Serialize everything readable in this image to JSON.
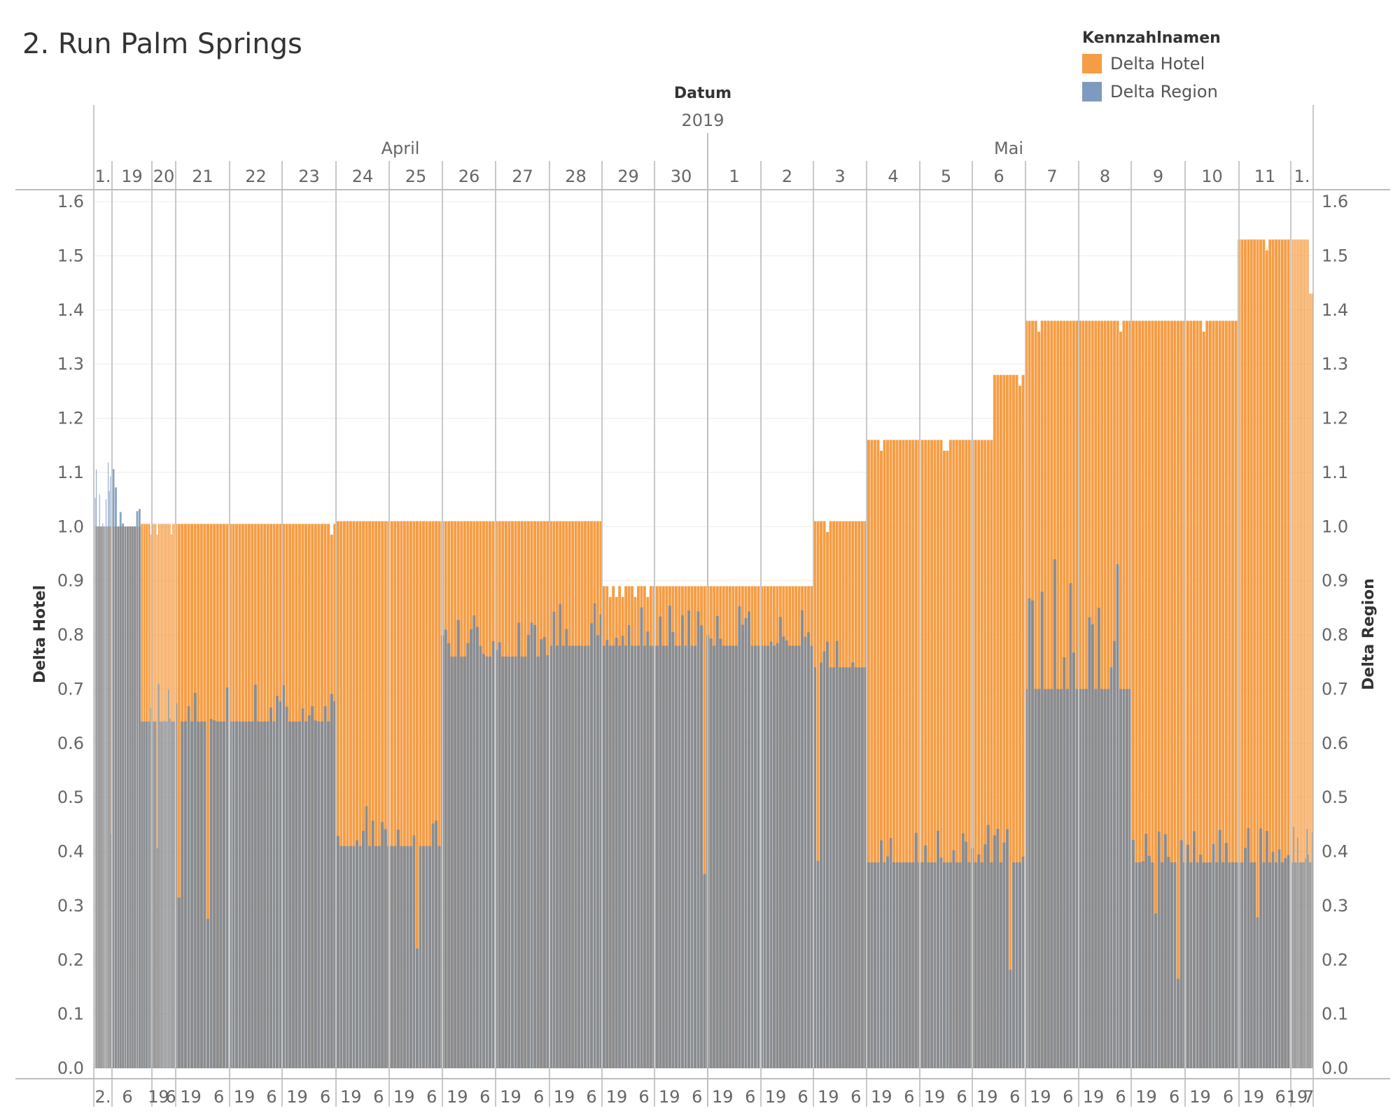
{
  "title": "2. Run Palm Springs",
  "legend": {
    "title": "Kennzahlnamen",
    "items": [
      {
        "label": "Delta Hotel",
        "color": "#f59d44"
      },
      {
        "label": "Delta Region",
        "color": "#7d9bc1"
      }
    ]
  },
  "chart_data": {
    "type": "bar",
    "title": "2. Run Palm Springs",
    "header": {
      "field": "Datum",
      "year": "2019",
      "months": [
        "April",
        "Mai"
      ]
    },
    "days": [
      "1.",
      "19",
      "20",
      "21",
      "22",
      "23",
      "24",
      "25",
      "26",
      "27",
      "28",
      "29",
      "30",
      "1",
      "2",
      "3",
      "4",
      "5",
      "6",
      "7",
      "8",
      "9",
      "10",
      "11",
      "1."
    ],
    "hour_labels": [
      "2.",
      "6",
      "19",
      "6",
      "19",
      "6",
      "19",
      "6",
      "19",
      "6",
      "19",
      "6",
      "19",
      "6",
      "19",
      "6",
      "19",
      "6",
      "19",
      "6",
      "19",
      "6",
      "19",
      "6",
      "19",
      "6",
      "19",
      "6",
      "19",
      "6",
      "19",
      "6",
      "19",
      "6",
      "19",
      "6",
      "19",
      "6",
      "19",
      "6",
      "19",
      "6",
      "19",
      "6",
      "19",
      "6",
      "19",
      "7"
    ],
    "ylabel_left": "Delta Hotel",
    "ylabel_right": "Delta Region",
    "ylim": [
      0,
      1.6
    ],
    "yticks": [
      "0.0",
      "0.1",
      "0.2",
      "0.3",
      "0.4",
      "0.5",
      "0.6",
      "0.7",
      "0.8",
      "0.9",
      "1.0",
      "1.1",
      "1.2",
      "1.3",
      "1.4",
      "1.5",
      "1.6"
    ],
    "series": [
      {
        "name": "Delta Hotel",
        "color": "#f59d44",
        "segments": [
          {
            "period": "Apr 18 (start)",
            "value": 1.0
          },
          {
            "period": "Apr 19 - Apr 23",
            "value": 1.005
          },
          {
            "period": "Apr 24 - Apr 28",
            "value": 1.01
          },
          {
            "period": "Apr 29 - May 2",
            "value": 0.89
          },
          {
            "period": "May 3",
            "value": 1.01
          },
          {
            "period": "May 4 - May 5",
            "value": 1.16
          },
          {
            "period": "May 5 (late)",
            "value": 1.28
          },
          {
            "period": "May 6 - May 9",
            "value": 1.38
          },
          {
            "period": "May 10 - May 11",
            "value": 1.53
          },
          {
            "period": "May 12",
            "value": 1.43
          }
        ]
      },
      {
        "name": "Delta Region",
        "color": "#7d9bc1",
        "segments": [
          {
            "period": "Apr 18 (start)",
            "value": 1.0,
            "peak": 1.12
          },
          {
            "period": "Apr 19 - Apr 22",
            "value": 0.64,
            "peak": 0.71
          },
          {
            "period": "Apr 23 - Apr 24",
            "value": 0.41,
            "peak": 0.49
          },
          {
            "period": "Apr 25 - Apr 26",
            "value": 0.76,
            "peak": 0.84
          },
          {
            "period": "Apr 27 - May 2",
            "value": 0.78,
            "peak": 0.86
          },
          {
            "period": "May 3",
            "value": 0.74,
            "peak": 0.79
          },
          {
            "period": "May 4 - May 6",
            "value": 0.38,
            "peak": 0.45
          },
          {
            "period": "May 7 - May 8",
            "value": 0.7,
            "peak": 0.96
          },
          {
            "period": "May 9 - May 12",
            "value": 0.38,
            "peak": 0.45
          }
        ]
      }
    ]
  }
}
